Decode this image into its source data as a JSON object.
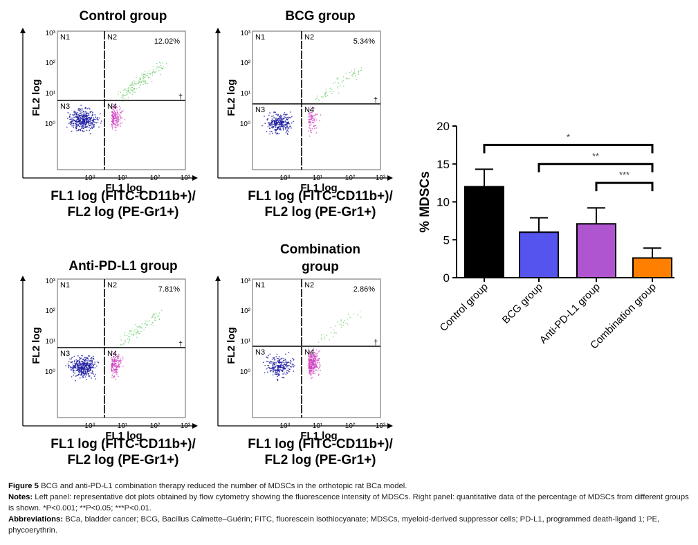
{
  "panels": [
    {
      "title": "Control group",
      "percent": "12.02%",
      "quadrants": [
        "N1",
        "N2",
        "N3",
        "N4"
      ],
      "xlabel": "FL1 log",
      "ylabel": "FL2 log",
      "label_line1": "FL1 log (FITC-CD11b+)/",
      "label_line2": "FL2 log (PE-Gr1+)",
      "marker": "†"
    },
    {
      "title": "BCG group",
      "percent": "5.34%",
      "quadrants": [
        "N1",
        "N2",
        "N3",
        "N4"
      ],
      "xlabel": "FL1 log",
      "ylabel": "FL2 log",
      "label_line1": "FL1 log (FITC-CD11b+)/",
      "label_line2": "FL2 log (PE-Gr1+)",
      "marker": "†"
    },
    {
      "title": "Anti-PD-L1 group",
      "percent": "7.81%",
      "quadrants": [
        "N1",
        "N2",
        "N3",
        "N4"
      ],
      "xlabel": "FL1 log",
      "ylabel": "FL2 log",
      "label_line1": "FL1 log (FITC-CD11b+)/",
      "label_line2": "FL2 log (PE-Gr1+)",
      "marker": "†"
    },
    {
      "title": "Combination group",
      "title_line1": "Combination",
      "title_line2": "group",
      "percent": "2.86%",
      "quadrants": [
        "N1",
        "N2",
        "N3",
        "N4"
      ],
      "xlabel": "FL1 log",
      "ylabel": "FL2 log",
      "label_line1": "FL1 log (FITC-CD11b+)/",
      "label_line2": "FL2 log (PE-Gr1+)",
      "marker": "†"
    }
  ],
  "log_ticks": [
    "10⁰",
    "10¹",
    "10²",
    "10³"
  ],
  "dot_colors": {
    "N3": "#1a1aa0",
    "N4": "#d040c0",
    "N2": "#70d070"
  },
  "chart_data": {
    "type": "bar",
    "categories": [
      "Control group",
      "BCG group",
      "Anti-PD-L1 group",
      "Combination group"
    ],
    "values": [
      12.0,
      6.0,
      7.1,
      2.6
    ],
    "error_upper": [
      14.3,
      7.9,
      9.2,
      3.9
    ],
    "colors": [
      "#000000",
      "#5555ee",
      "#b055d0",
      "#ff8000"
    ],
    "ylabel": "% MDSCs",
    "ylim": [
      0,
      20
    ],
    "yticks": [
      0,
      5,
      10,
      15,
      20
    ],
    "grid": false,
    "significance": [
      {
        "from": "Control group",
        "to": "Combination group",
        "label": "*",
        "y": 17.5
      },
      {
        "from": "BCG group",
        "to": "Combination group",
        "label": "**",
        "y": 15
      },
      {
        "from": "Anti-PD-L1 group",
        "to": "Combination group",
        "label": "***",
        "y": 12.5
      }
    ]
  },
  "caption": {
    "figure_label": "Figure 5",
    "figure_text": " BCG and anti-PD-L1 combination therapy reduced the number of MDSCs in the orthotopic rat BCa model.",
    "notes_label": "Notes:",
    "notes_text": " Left panel: representative dot plots obtained by flow cytometry showing the fluorescence intensity of MDSCs. Right panel: quantitative data of the percentage of MDSCs from different groups is shown. *P<0.001; **P<0.05; ***P<0.01.",
    "abbr_label": "Abbreviations:",
    "abbr_text": " BCa, bladder cancer; BCG, Bacillus Calmette–Guérin; FITC, fluorescein isothiocyanate; MDSCs, myeloid-derived suppressor cells; PD-L1, programmed death-ligand 1; PE, phycoerythrin."
  }
}
